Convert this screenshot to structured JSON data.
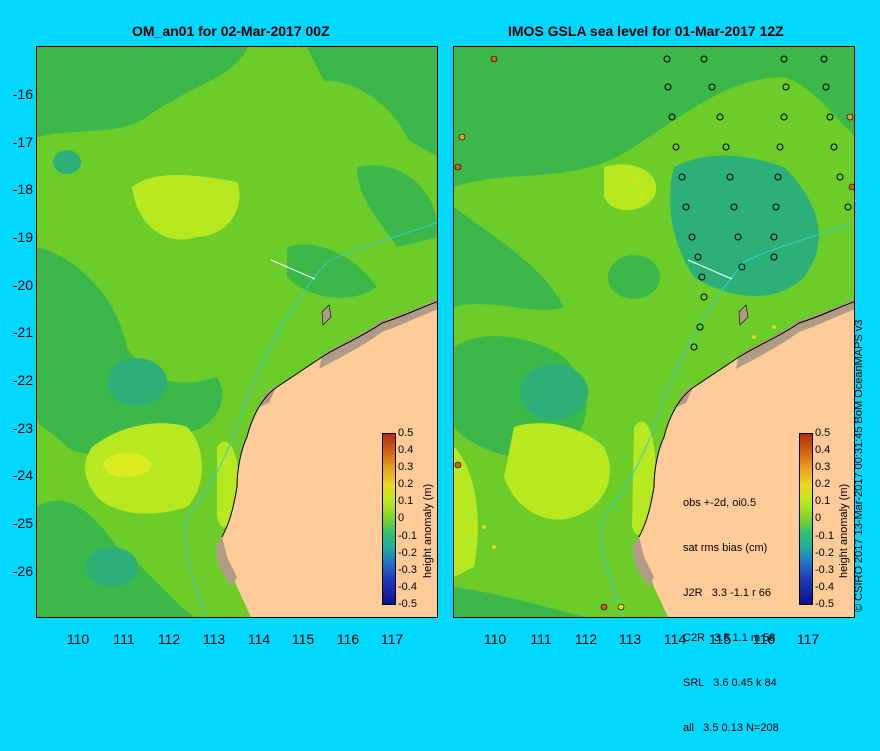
{
  "left_title": "OM_an01 for 02-Mar-2017 00Z",
  "right_title": "IMOS GSLA sea level  for 01-Mar-2017 12Z",
  "lat_ticks": [
    "-16",
    "-17",
    "-18",
    "-19",
    "-20",
    "-21",
    "-22",
    "-23",
    "-24",
    "-25",
    "-26"
  ],
  "lon_ticks": [
    "110",
    "111",
    "112",
    "113",
    "114",
    "115",
    "116",
    "117"
  ],
  "colorbar": {
    "label": "height anomaly (m)",
    "ticks": [
      "0.5",
      "0.4",
      "0.3",
      "0.2",
      "0.1",
      "0",
      "-0.1",
      "-0.2",
      "-0.3",
      "-0.4",
      "-0.5"
    ]
  },
  "stats": {
    "line1": "obs +-2d, oi0.5",
    "line2": "sat rms bias (cm)",
    "line3": "J2R   3.3 -1.1 r 66",
    "line4": "C2R   3.5 1.1 m 58",
    "line5": "SRL   3.6 0.45 k 84",
    "line6": "all   3.5 0.13 N=208"
  },
  "credit": "© CSIRO 2017  13-Mar-2017 00:31:45 BoM OceanMAPS v3",
  "colors": {
    "background": "#00d8ff",
    "ocean_base": "#6ccc2a",
    "land": "#ffcc99",
    "shelf": "#b09c84"
  }
}
